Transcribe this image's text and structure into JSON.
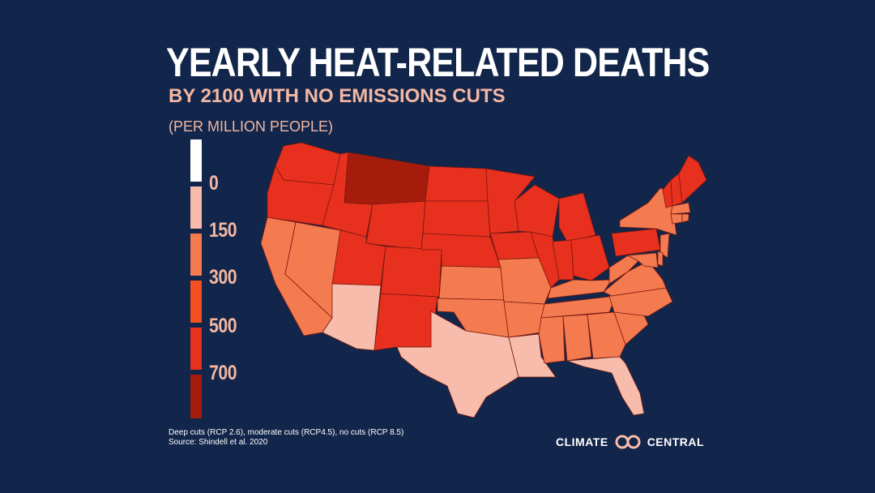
{
  "title": "YEARLY HEAT-RELATED DEATHS",
  "subtitle": "BY 2100 WITH NO EMISSIONS CUTS",
  "units": "(PER MILLION PEOPLE)",
  "legend": {
    "labels": [
      "0",
      "150",
      "300",
      "500",
      "700"
    ],
    "colors": [
      "#ffffff",
      "#f7bcab",
      "#f47a50",
      "#f2501e",
      "#e8301f",
      "#a51c0c"
    ]
  },
  "state_colors": {
    "pale": "#f7bcab",
    "orange": "#f47a50",
    "red": "#e8301f",
    "dark": "#a51c0c"
  },
  "states": [
    {
      "name": "Washington",
      "level": "red"
    },
    {
      "name": "Oregon",
      "level": "red"
    },
    {
      "name": "California",
      "level": "orange"
    },
    {
      "name": "Nevada",
      "level": "orange"
    },
    {
      "name": "Idaho",
      "level": "red"
    },
    {
      "name": "Montana",
      "level": "dark"
    },
    {
      "name": "Wyoming",
      "level": "red"
    },
    {
      "name": "Utah",
      "level": "red"
    },
    {
      "name": "Arizona",
      "level": "pale"
    },
    {
      "name": "Colorado",
      "level": "red"
    },
    {
      "name": "New Mexico",
      "level": "red"
    },
    {
      "name": "North Dakota",
      "level": "red"
    },
    {
      "name": "South Dakota",
      "level": "red"
    },
    {
      "name": "Nebraska",
      "level": "red"
    },
    {
      "name": "Kansas",
      "level": "orange"
    },
    {
      "name": "Oklahoma",
      "level": "orange"
    },
    {
      "name": "Texas",
      "level": "pale"
    },
    {
      "name": "Minnesota",
      "level": "red"
    },
    {
      "name": "Iowa",
      "level": "red"
    },
    {
      "name": "Missouri",
      "level": "orange"
    },
    {
      "name": "Arkansas",
      "level": "orange"
    },
    {
      "name": "Louisiana",
      "level": "pale"
    },
    {
      "name": "Wisconsin",
      "level": "red"
    },
    {
      "name": "Illinois",
      "level": "red"
    },
    {
      "name": "Michigan",
      "level": "red"
    },
    {
      "name": "Indiana",
      "level": "red"
    },
    {
      "name": "Ohio",
      "level": "red"
    },
    {
      "name": "Kentucky",
      "level": "orange"
    },
    {
      "name": "Tennessee",
      "level": "orange"
    },
    {
      "name": "Mississippi",
      "level": "orange"
    },
    {
      "name": "Alabama",
      "level": "orange"
    },
    {
      "name": "Georgia",
      "level": "orange"
    },
    {
      "name": "Florida",
      "level": "pale"
    },
    {
      "name": "South Carolina",
      "level": "orange"
    },
    {
      "name": "North Carolina",
      "level": "orange"
    },
    {
      "name": "Virginia",
      "level": "orange"
    },
    {
      "name": "West Virginia",
      "level": "orange"
    },
    {
      "name": "Pennsylvania",
      "level": "red"
    },
    {
      "name": "New York",
      "level": "orange"
    },
    {
      "name": "Vermont",
      "level": "red"
    },
    {
      "name": "New Hampshire",
      "level": "red"
    },
    {
      "name": "Maine",
      "level": "red"
    },
    {
      "name": "Massachusetts",
      "level": "orange"
    },
    {
      "name": "Connecticut",
      "level": "orange"
    },
    {
      "name": "Rhode Island",
      "level": "orange"
    },
    {
      "name": "New Jersey",
      "level": "orange"
    },
    {
      "name": "Delaware",
      "level": "orange"
    },
    {
      "name": "Maryland",
      "level": "orange"
    }
  ],
  "source_line1": "Deep cuts (RCP 2.6), moderate cuts (RCP4.5), no cuts (RCP 8.5)",
  "source_line2": "Source: Shindell et al. 2020",
  "brand_left": "CLIMATE",
  "brand_right": "CENTRAL",
  "brand_logo_icon": "double-circle-logo-icon"
}
